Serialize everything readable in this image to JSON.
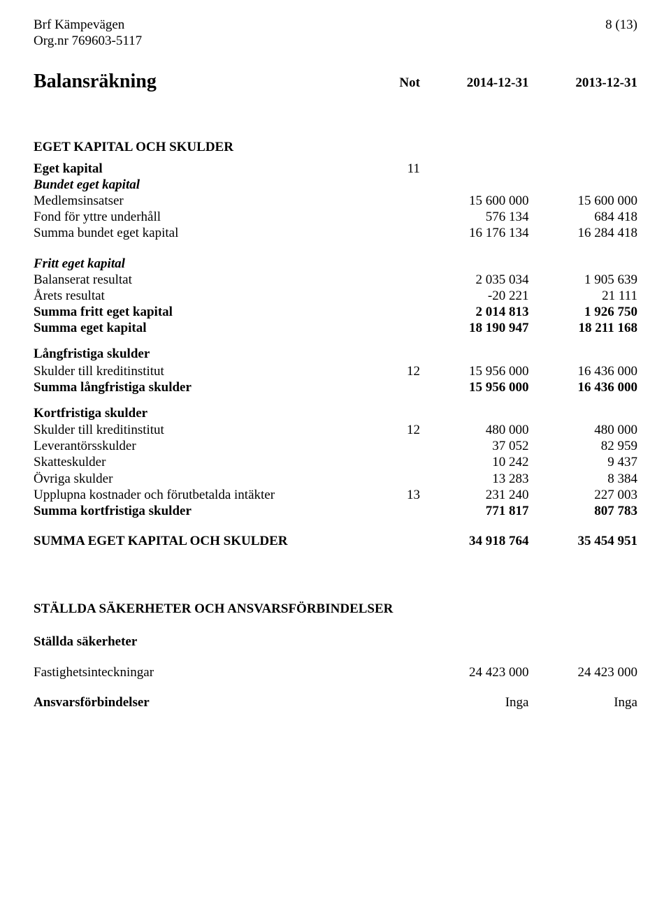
{
  "header": {
    "company": "Brf Kämpevägen",
    "orgnr": "Org.nr 769603-5117",
    "page": "8 (13)"
  },
  "title": {
    "main": "Balansräkning",
    "col_not": "Not",
    "col_a": "2014-12-31",
    "col_b": "2013-12-31"
  },
  "sections": {
    "eget_kapital_heading": "EGET KAPITAL OCH SKULDER",
    "eget_kapital": {
      "label": "Eget kapital",
      "not": "11"
    },
    "bundet_eget_kapital_label": "Bundet eget kapital",
    "medlemsinsatser": {
      "label": "Medlemsinsatser",
      "a": "15 600 000",
      "b": "15 600 000"
    },
    "fond_yttre": {
      "label": "Fond för yttre underhåll",
      "a": "576 134",
      "b": "684 418"
    },
    "summa_bundet": {
      "label": "Summa bundet eget kapital",
      "a": "16 176 134",
      "b": "16 284 418"
    },
    "fritt_eget_kapital_label": "Fritt eget kapital",
    "balanserat_resultat": {
      "label": "Balanserat resultat",
      "a": "2 035 034",
      "b": "1 905 639"
    },
    "arets_resultat": {
      "label": "Årets resultat",
      "a": "-20 221",
      "b": "21 111"
    },
    "summa_fritt": {
      "label": "Summa fritt eget kapital",
      "a": "2 014 813",
      "b": "1 926 750"
    },
    "summa_eget_kapital": {
      "label": "Summa eget kapital",
      "a": "18 190 947",
      "b": "18 211 168"
    },
    "langfristiga_heading": "Långfristiga skulder",
    "skulder_kredit_lang": {
      "label": "Skulder till kreditinstitut",
      "not": "12",
      "a": "15 956 000",
      "b": "16 436 000"
    },
    "summa_langfristiga": {
      "label": "Summa långfristiga skulder",
      "a": "15 956 000",
      "b": "16 436 000"
    },
    "kortfristiga_heading": "Kortfristiga skulder",
    "skulder_kredit_kort": {
      "label": "Skulder till kreditinstitut",
      "not": "12",
      "a": "480 000",
      "b": "480 000"
    },
    "leverantorsskulder": {
      "label": "Leverantörsskulder",
      "a": "37 052",
      "b": "82 959"
    },
    "skatteskulder": {
      "label": "Skatteskulder",
      "a": "10 242",
      "b": "9 437"
    },
    "ovriga_skulder": {
      "label": "Övriga skulder",
      "a": "13 283",
      "b": "8 384"
    },
    "upplupna": {
      "label": "Upplupna kostnader och förutbetalda intäkter",
      "not": "13",
      "a": "231 240",
      "b": "227 003"
    },
    "summa_kortfristiga": {
      "label": "Summa kortfristiga skulder",
      "a": "771 817",
      "b": "807 783"
    },
    "summa_total": {
      "label": "SUMMA EGET KAPITAL OCH SKULDER",
      "a": "34 918 764",
      "b": "35 454 951"
    },
    "stallda_heading": "STÄLLDA SÄKERHETER OCH ANSVARSFÖRBINDELSER",
    "stallda_sakerheter_label": "Ställda säkerheter",
    "fastighetsinteckningar": {
      "label": "Fastighetsinteckningar",
      "a": "24 423 000",
      "b": "24 423 000"
    },
    "ansvarsforbindelser": {
      "label": "Ansvarsförbindelser",
      "a": "Inga",
      "b": "Inga"
    }
  }
}
